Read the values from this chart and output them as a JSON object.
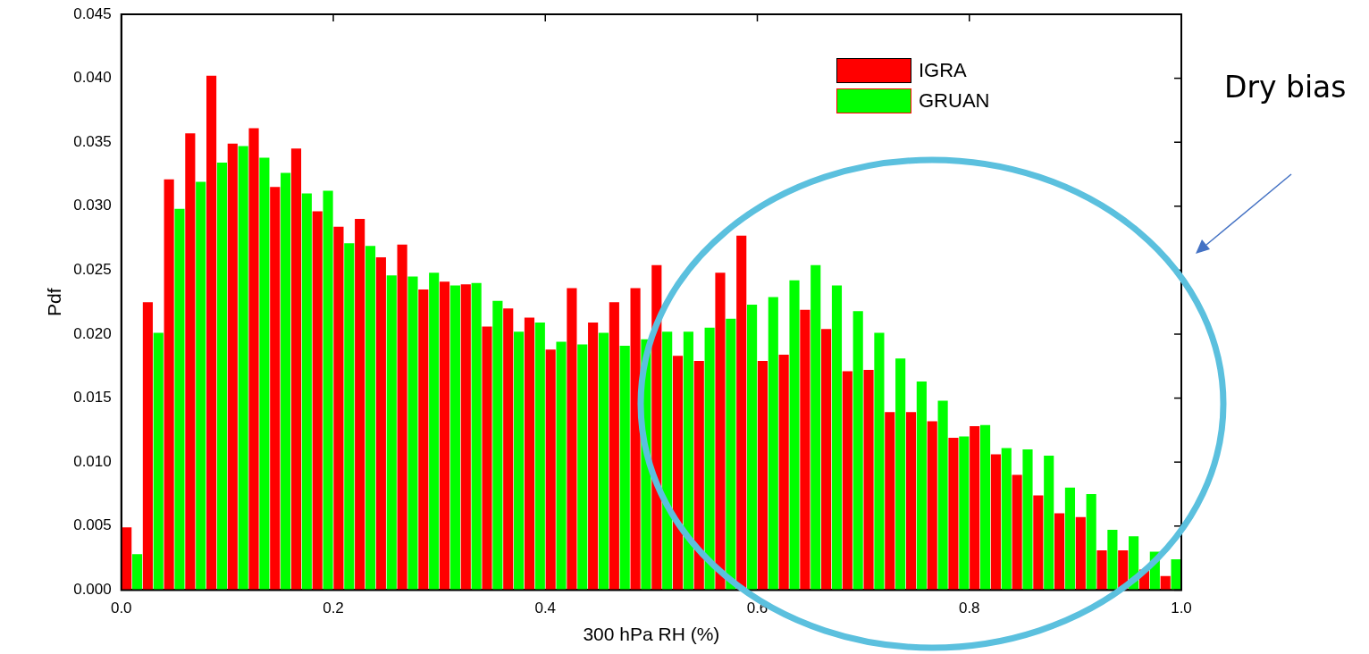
{
  "chart_data": {
    "type": "histogram",
    "xlabel": "300 hPa RH (%)",
    "ylabel": "Pdf",
    "bins": [
      0,
      0.02,
      0.04,
      0.06,
      0.08,
      0.1,
      0.12,
      0.14,
      0.16,
      0.18,
      0.2,
      0.22,
      0.24,
      0.26,
      0.28,
      0.3,
      0.32,
      0.34,
      0.36,
      0.38,
      0.4,
      0.42,
      0.44,
      0.46,
      0.48,
      0.5,
      0.52,
      0.54,
      0.56,
      0.58,
      0.6,
      0.62,
      0.64,
      0.66,
      0.68,
      0.7,
      0.72,
      0.74,
      0.76,
      0.78,
      0.8,
      0.82,
      0.84,
      0.86,
      0.88,
      0.9,
      0.92,
      0.94,
      0.96,
      0.98,
      1
    ],
    "series": [
      {
        "name": "IGRA",
        "color": "#ff0000",
        "values": [
          0.0049,
          0.0225,
          0.0321,
          0.0357,
          0.0402,
          0.0349,
          0.0361,
          0.0315,
          0.0345,
          0.0296,
          0.0284,
          0.029,
          0.026,
          0.027,
          0.0235,
          0.0241,
          0.0239,
          0.0206,
          0.022,
          0.0213,
          0.0188,
          0.0236,
          0.0209,
          0.0225,
          0.0236,
          0.0254,
          0.0183,
          0.0179,
          0.0248,
          0.0277,
          0.0179,
          0.0184,
          0.0219,
          0.0204,
          0.0171,
          0.0172,
          0.0139,
          0.0139,
          0.0132,
          0.0119,
          0.0128,
          0.0106,
          0.009,
          0.0074,
          0.006,
          0.0057,
          0.0031,
          0.0031,
          0.0016,
          0.0011
        ]
      },
      {
        "name": "GRUAN",
        "color": "#00ff00",
        "values": [
          0.0028,
          0.0201,
          0.0298,
          0.0319,
          0.0334,
          0.0347,
          0.0338,
          0.0326,
          0.031,
          0.0312,
          0.0271,
          0.0269,
          0.0246,
          0.0245,
          0.0248,
          0.0238,
          0.024,
          0.0226,
          0.0202,
          0.0209,
          0.0194,
          0.0192,
          0.0201,
          0.0191,
          0.0196,
          0.0202,
          0.0202,
          0.0205,
          0.0212,
          0.0223,
          0.0229,
          0.0242,
          0.0254,
          0.0238,
          0.0218,
          0.0201,
          0.0181,
          0.0163,
          0.0148,
          0.012,
          0.0129,
          0.0111,
          0.011,
          0.0105,
          0.008,
          0.0075,
          0.0047,
          0.0042,
          0.003,
          0.0024
        ]
      }
    ],
    "xlim": [
      0,
      1
    ],
    "xticks": [
      {
        "value": 0,
        "label": "0.0"
      },
      {
        "value": 0.2,
        "label": "0.2"
      },
      {
        "value": 0.4,
        "label": "0.4"
      },
      {
        "value": 0.6,
        "label": "0.6"
      },
      {
        "value": 0.8,
        "label": "0.8"
      },
      {
        "value": 1,
        "label": "1.0"
      }
    ],
    "ylim": [
      0,
      0.045
    ],
    "yticks": [
      {
        "value": 0,
        "label": "0.000"
      },
      {
        "value": 0.005,
        "label": "0.005"
      },
      {
        "value": 0.01,
        "label": "0.010"
      },
      {
        "value": 0.015,
        "label": "0.015"
      },
      {
        "value": 0.02,
        "label": "0.020"
      },
      {
        "value": 0.025,
        "label": "0.025"
      },
      {
        "value": 0.03,
        "label": "0.030"
      },
      {
        "value": 0.035,
        "label": "0.035"
      },
      {
        "value": 0.04,
        "label": "0.040"
      },
      {
        "value": 0.045,
        "label": "0.045"
      }
    ],
    "grid": false,
    "legend": "top right",
    "annotations": [
      "Dry bias"
    ]
  }
}
